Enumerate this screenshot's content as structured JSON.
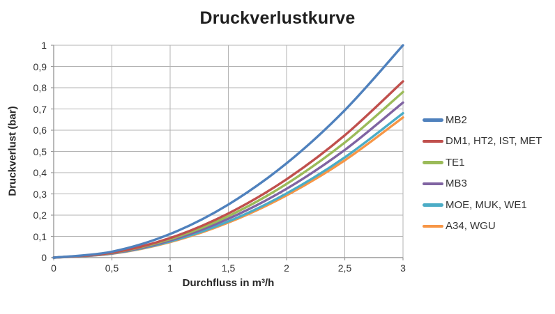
{
  "chart_data": {
    "type": "line",
    "title": "Druckverlustkurve",
    "xlabel": "Durchfluss in m³/h",
    "ylabel": "Druckverlust (bar)",
    "xlim": [
      0,
      3
    ],
    "ylim": [
      0,
      1
    ],
    "grid": true,
    "legend_position": "right",
    "x_tick_values": [
      0,
      0.5,
      1,
      1.5,
      2,
      2.5,
      3
    ],
    "x_tick_labels": [
      "0",
      "0,5",
      "1",
      "1,5",
      "2",
      "2,5",
      "3"
    ],
    "y_tick_values": [
      0,
      0.1,
      0.2,
      0.3,
      0.4,
      0.5,
      0.6,
      0.7,
      0.8,
      0.9,
      1
    ],
    "y_tick_labels": [
      "0",
      "0,1",
      "0,2",
      "0,3",
      "0,4",
      "0,5",
      "0,6",
      "0,7",
      "0,8",
      "0,9",
      "1"
    ],
    "x": [
      0,
      0.5,
      1,
      1.5,
      2,
      2.5,
      3
    ],
    "series": [
      {
        "name": "MB2",
        "color": "#4F81BD",
        "values": [
          0,
          0.028,
          0.111,
          0.25,
          0.444,
          0.694,
          1.0
        ]
      },
      {
        "name": "DM1, HT2, IST, MET",
        "color": "#C0504D",
        "values": [
          0,
          0.023,
          0.092,
          0.208,
          0.369,
          0.576,
          0.83
        ]
      },
      {
        "name": "TE1",
        "color": "#9BBB59",
        "values": [
          0,
          0.022,
          0.087,
          0.195,
          0.347,
          0.542,
          0.78
        ]
      },
      {
        "name": "MB3",
        "color": "#8064A2",
        "values": [
          0,
          0.02,
          0.081,
          0.183,
          0.324,
          0.507,
          0.73
        ]
      },
      {
        "name": "MOE, MUK, WE1",
        "color": "#4BACC6",
        "values": [
          0,
          0.019,
          0.076,
          0.17,
          0.302,
          0.472,
          0.68
        ]
      },
      {
        "name": "A34, WGU",
        "color": "#F79646",
        "values": [
          0,
          0.018,
          0.073,
          0.165,
          0.293,
          0.458,
          0.66
        ]
      }
    ]
  },
  "colors": {
    "gridline": "#b3b3b3",
    "axis": "#9a9a9a",
    "tick_text": "#333333",
    "title_text": "#1f1f1f"
  }
}
